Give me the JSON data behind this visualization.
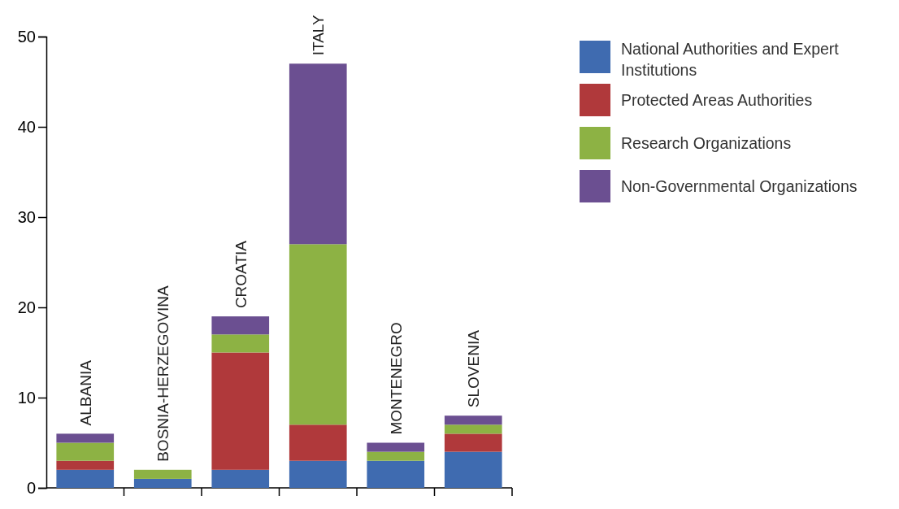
{
  "chart_data": {
    "type": "bar",
    "stacked": true,
    "categories": [
      "ALBANIA",
      "BOSNIA-HERZEGOVINA",
      "CROATIA",
      "ITALY",
      "MONTENEGRO",
      "SLOVENIA"
    ],
    "series": [
      {
        "name": "National Authorities and Expert Institutions",
        "color": "#3f6bb0",
        "values": [
          2,
          1,
          2,
          3,
          3,
          4
        ]
      },
      {
        "name": "Protected Areas Authorities",
        "color": "#b0393b",
        "values": [
          1,
          0,
          13,
          4,
          0,
          2
        ]
      },
      {
        "name": "Research Organizations",
        "color": "#8db244",
        "values": [
          2,
          1,
          2,
          20,
          1,
          1
        ]
      },
      {
        "name": "Non-Governmental Organizations",
        "color": "#6b4f91",
        "values": [
          1,
          0,
          2,
          20,
          1,
          1
        ]
      }
    ],
    "ylim": [
      0,
      50
    ],
    "yticks": [
      0,
      10,
      20,
      30,
      40,
      50
    ],
    "grid": false,
    "legend": "top right"
  }
}
